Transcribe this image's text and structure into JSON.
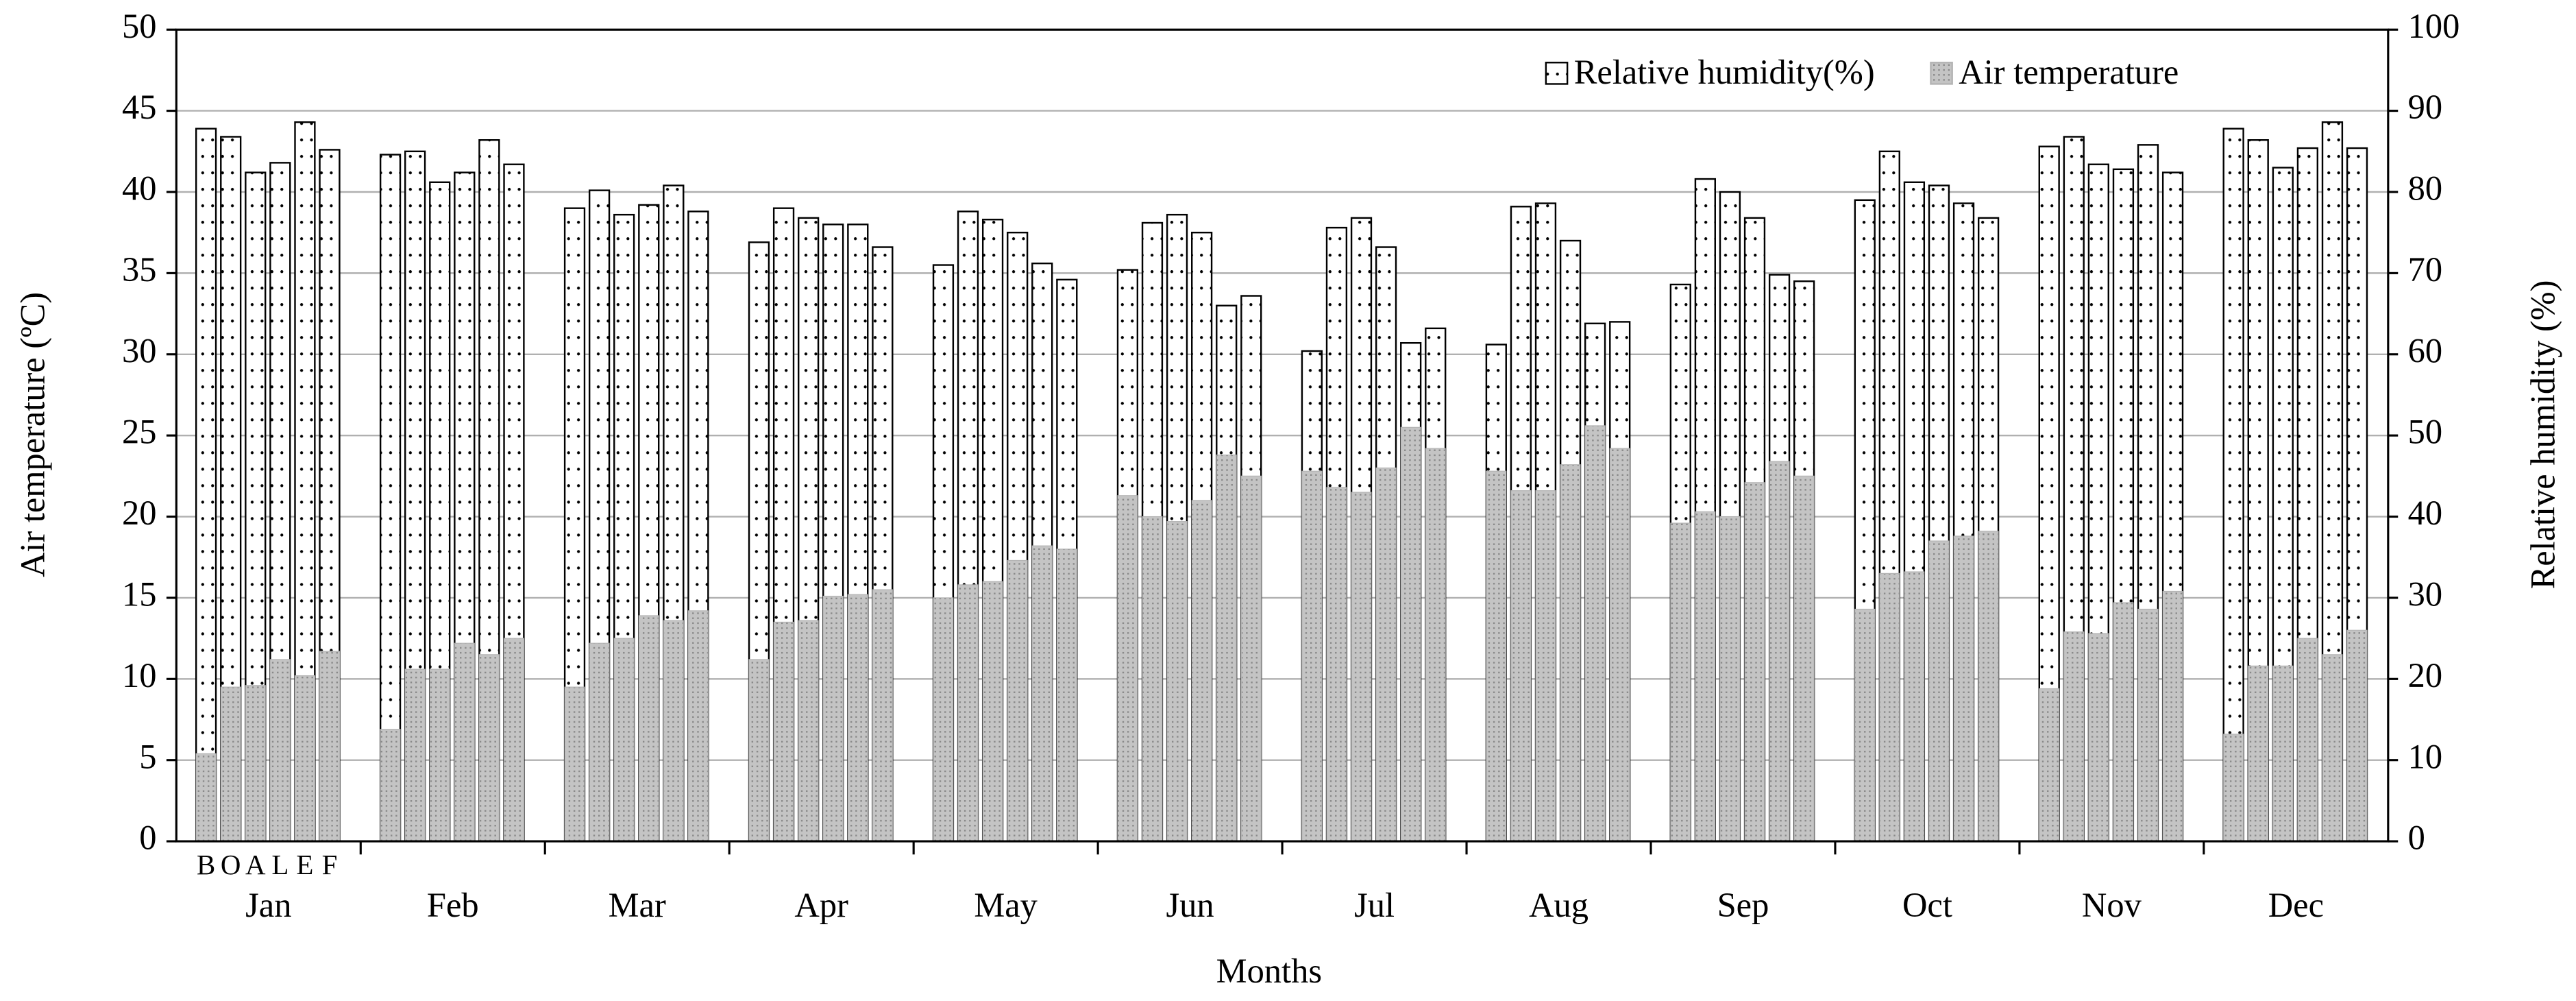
{
  "chart_data": {
    "type": "bar",
    "x_label": "Months",
    "y_label": "Air temperature (ºC)",
    "y2_label": "Relative humidity (%)",
    "categories": [
      "Jan",
      "Feb",
      "Mar",
      "Apr",
      "May",
      "Jun",
      "Jul",
      "Aug",
      "Sep",
      "Oct",
      "Nov",
      "Dec"
    ],
    "sites": [
      "B",
      "O",
      "A",
      "L",
      "E",
      "F"
    ],
    "series": [
      {
        "name": "Relative humidity(%)",
        "color": "#ffffff",
        "axis": "y2",
        "values": [
          [
            87.8,
            86.8,
            82.4,
            83.6,
            88.6,
            85.2
          ],
          [
            84.6,
            85,
            81.2,
            82.4,
            86.4,
            83.4
          ],
          [
            78,
            80.2,
            77.2,
            78.4,
            80.8,
            77.6
          ],
          [
            73.8,
            78,
            76.8,
            76,
            76,
            73.2
          ],
          [
            71,
            77.6,
            76.6,
            75,
            71.2,
            69.2
          ],
          [
            70.4,
            76.2,
            77.2,
            75,
            66,
            67.2
          ],
          [
            60.4,
            75.6,
            76.8,
            73.2,
            61.4,
            63.2
          ],
          [
            61.2,
            78.2,
            78.6,
            74,
            63.8,
            64
          ],
          [
            68.6,
            81.6,
            80,
            76.8,
            69.8,
            69
          ],
          [
            79,
            85,
            81.2,
            80.8,
            78.6,
            76.8
          ],
          [
            85.6,
            86.8,
            83.4,
            82.8,
            85.8,
            82.4
          ],
          [
            87.8,
            86.4,
            83,
            85.4,
            88.6,
            85.4
          ]
        ]
      },
      {
        "name": "Air temperature",
        "color": "#b4b4b4",
        "values": [
          [
            5.4,
            9.5,
            9.6,
            11.2,
            10.2,
            11.7
          ],
          [
            6.9,
            10.6,
            10.6,
            12.2,
            11.5,
            12.5
          ],
          [
            9.5,
            12.2,
            12.5,
            13.9,
            13.6,
            14.2
          ],
          [
            11.2,
            13.5,
            13.6,
            15.1,
            15.2,
            15.5
          ],
          [
            15,
            15.8,
            16,
            17.3,
            18.2,
            18
          ],
          [
            21.3,
            20,
            19.7,
            21,
            23.8,
            22.5
          ],
          [
            22.8,
            21.8,
            21.5,
            23,
            25.5,
            24.2
          ],
          [
            22.8,
            21.6,
            21.6,
            23.2,
            25.6,
            24.2
          ],
          [
            19.6,
            20.3,
            20,
            22.1,
            23.4,
            22.5
          ],
          [
            14.3,
            16.5,
            16.6,
            18.5,
            18.8,
            19.1
          ],
          [
            9.4,
            12.9,
            12.8,
            14.7,
            14.3,
            15.4
          ],
          [
            6.6,
            10.8,
            10.8,
            12.5,
            11.5,
            13
          ]
        ]
      }
    ],
    "ylim": [
      0,
      50
    ],
    "yticks": [
      0,
      5,
      10,
      15,
      20,
      25,
      30,
      35,
      40,
      45,
      50
    ],
    "y2lim": [
      0,
      100
    ],
    "y2ticks": [
      0,
      10,
      20,
      30,
      40,
      50,
      60,
      70,
      80,
      90,
      100
    ],
    "grid": true,
    "legend": "upper-right"
  }
}
